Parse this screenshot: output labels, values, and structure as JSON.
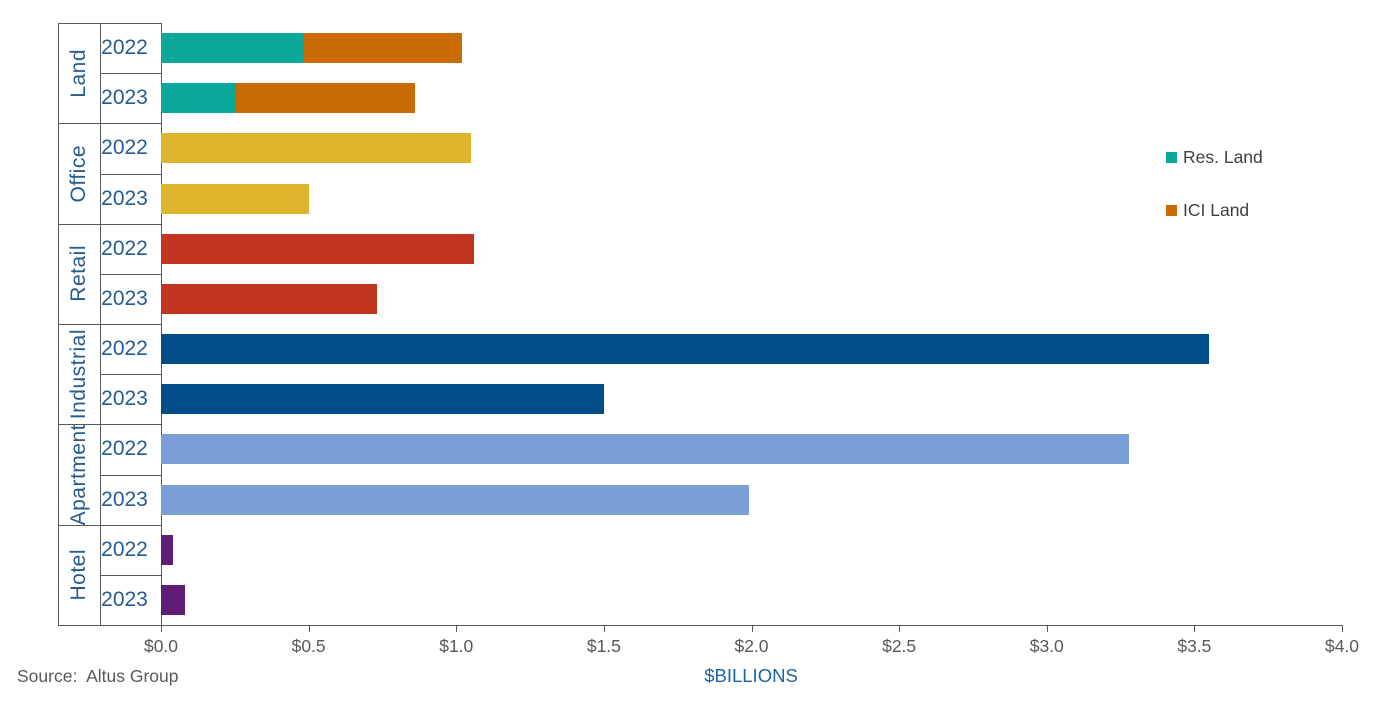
{
  "chart_data": {
    "type": "bar",
    "orientation": "horizontal",
    "title": "",
    "xlabel": "$BILLIONS",
    "xlim": [
      0,
      4
    ],
    "x_tick_values": [
      0,
      0.5,
      1.0,
      1.5,
      2.0,
      2.5,
      3.0,
      3.5,
      4.0
    ],
    "x_tick_labels": [
      "$0.0",
      "$0.5",
      "$1.0",
      "$1.5",
      "$2.0",
      "$2.5",
      "$3.0",
      "$3.5",
      "$4.0"
    ],
    "grid": false,
    "source": "Source:  Altus Group",
    "legend": {
      "position": "right",
      "items": [
        {
          "label": "Res. Land",
          "color": "#0AA79D"
        },
        {
          "label": "ICI Land",
          "color": "#C96A03"
        }
      ]
    },
    "groups": [
      {
        "category": "Land",
        "rows": [
          {
            "year": "2022",
            "total": 1.02,
            "segments": [
              {
                "series": "Res. Land",
                "value": 0.48,
                "color": "#0AA79D"
              },
              {
                "series": "ICI Land",
                "value": 0.54,
                "color": "#C96A03"
              }
            ]
          },
          {
            "year": "2023",
            "total": 0.86,
            "segments": [
              {
                "series": "Res. Land",
                "value": 0.25,
                "color": "#0AA79D"
              },
              {
                "series": "ICI Land",
                "value": 0.61,
                "color": "#C96A03"
              }
            ]
          }
        ]
      },
      {
        "category": "Office",
        "rows": [
          {
            "year": "2022",
            "total": 1.05,
            "segments": [
              {
                "series": "Office",
                "value": 1.05,
                "color": "#DFB52E"
              }
            ]
          },
          {
            "year": "2023",
            "total": 0.5,
            "segments": [
              {
                "series": "Office",
                "value": 0.5,
                "color": "#DFB52E"
              }
            ]
          }
        ]
      },
      {
        "category": "Retail",
        "rows": [
          {
            "year": "2022",
            "total": 1.06,
            "segments": [
              {
                "series": "Retail",
                "value": 1.06,
                "color": "#C23520"
              }
            ]
          },
          {
            "year": "2023",
            "total": 0.73,
            "segments": [
              {
                "series": "Retail",
                "value": 0.73,
                "color": "#C23520"
              }
            ]
          }
        ]
      },
      {
        "category": "Industrial",
        "rows": [
          {
            "year": "2022",
            "total": 3.55,
            "segments": [
              {
                "series": "Industrial",
                "value": 3.55,
                "color": "#004D87"
              }
            ]
          },
          {
            "year": "2023",
            "total": 1.5,
            "segments": [
              {
                "series": "Industrial",
                "value": 1.5,
                "color": "#004D87"
              }
            ]
          }
        ]
      },
      {
        "category": "Apartment",
        "rows": [
          {
            "year": "2022",
            "total": 3.28,
            "segments": [
              {
                "series": "Apartment",
                "value": 3.28,
                "color": "#7C9ED6"
              }
            ]
          },
          {
            "year": "2023",
            "total": 1.99,
            "segments": [
              {
                "series": "Apartment",
                "value": 1.99,
                "color": "#7C9ED6"
              }
            ]
          }
        ]
      },
      {
        "category": "Hotel",
        "rows": [
          {
            "year": "2022",
            "total": 0.04,
            "segments": [
              {
                "series": "Hotel",
                "value": 0.04,
                "color": "#5F1D78"
              }
            ]
          },
          {
            "year": "2023",
            "total": 0.08,
            "segments": [
              {
                "series": "Hotel",
                "value": 0.08,
                "color": "#5F1D78"
              }
            ]
          }
        ]
      }
    ],
    "colors": {
      "axis_text": "#595959",
      "row_label_text": "#255C8F",
      "axis_title_text": "#1A63A5",
      "legend_text": "#404040",
      "table_line": "#595959"
    }
  }
}
